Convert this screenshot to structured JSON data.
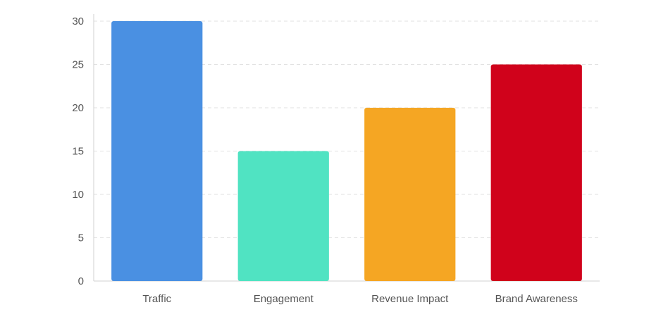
{
  "chart_data": {
    "type": "bar",
    "title": "",
    "xlabel": "",
    "ylabel": "",
    "categories": [
      "Traffic",
      "Engagement",
      "Revenue Impact",
      "Brand Awareness"
    ],
    "values": [
      30,
      15,
      20,
      25
    ],
    "colors": [
      "#4A90E2",
      "#50E3C2",
      "#F5A623",
      "#D0021B"
    ],
    "ylim": [
      0,
      30
    ],
    "yticks": [
      0,
      5,
      10,
      15,
      20,
      25,
      30
    ],
    "grid": true,
    "legend": "none"
  }
}
